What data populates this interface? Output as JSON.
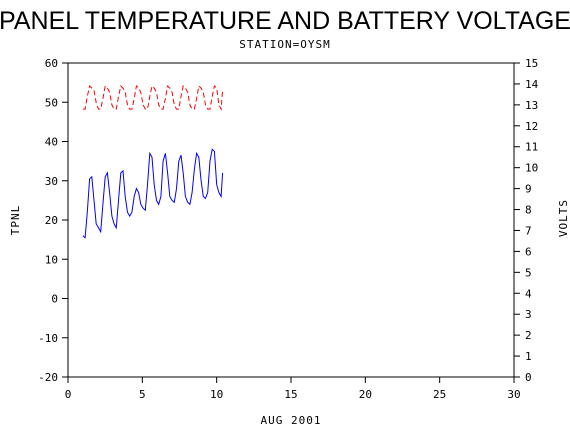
{
  "chart_data": {
    "type": "line",
    "title": "PANEL TEMPERATURE AND BATTERY VOLTAGE",
    "subtitle": "STATION=OYSM",
    "xlabel": "AUG 2001",
    "ylabel": "TPNL",
    "y2label": "VOLTS",
    "xlim": [
      0,
      30
    ],
    "ylim": [
      -20,
      60
    ],
    "y2lim": [
      0,
      15
    ],
    "xticks": [
      0,
      5,
      10,
      15,
      20,
      25,
      30
    ],
    "yticks": [
      -20,
      -10,
      0,
      10,
      20,
      30,
      40,
      50,
      60
    ],
    "y2ticks": [
      0,
      1,
      2,
      3,
      4,
      5,
      6,
      7,
      8,
      9,
      10,
      11,
      12,
      13,
      14,
      15
    ],
    "series": [
      {
        "axis": "left",
        "color": "#0000ff",
        "style": "solid",
        "x": [
          1.0,
          1.15,
          1.3,
          1.45,
          1.6,
          1.75,
          1.9,
          2.05,
          2.2,
          2.35,
          2.5,
          2.65,
          2.8,
          2.95,
          3.1,
          3.25,
          3.4,
          3.55,
          3.7,
          3.85,
          4.0,
          4.15,
          4.3,
          4.45,
          4.6,
          4.75,
          4.9,
          5.05,
          5.2,
          5.35,
          5.5,
          5.65,
          5.8,
          5.95,
          6.1,
          6.25,
          6.4,
          6.55,
          6.7,
          6.85,
          7.0,
          7.15,
          7.3,
          7.45,
          7.6,
          7.75,
          7.9,
          8.05,
          8.2,
          8.35,
          8.5,
          8.65,
          8.8,
          8.95,
          9.1,
          9.25,
          9.4,
          9.55,
          9.7,
          9.85,
          10.0,
          10.15,
          10.3,
          10.4
        ],
        "y": [
          16,
          15.5,
          22,
          30.5,
          31,
          25,
          19,
          18,
          17,
          24,
          31,
          32,
          27,
          21,
          19,
          18,
          25,
          32,
          32.5,
          26,
          22,
          21,
          22,
          26,
          28,
          27,
          24,
          23,
          22.5,
          29,
          37,
          36,
          29,
          25,
          24,
          26,
          35,
          37,
          32,
          26,
          25,
          24.5,
          28,
          35,
          36.5,
          32,
          26,
          24.5,
          24,
          27,
          33,
          37,
          36,
          30,
          26,
          25.5,
          27,
          35,
          38,
          37.5,
          29,
          27,
          26,
          32
        ]
      },
      {
        "axis": "right",
        "color": "#ff0000",
        "style": "dashed",
        "x": [
          1.0,
          1.15,
          1.3,
          1.45,
          1.6,
          1.75,
          1.9,
          2.05,
          2.2,
          2.35,
          2.5,
          2.65,
          2.8,
          2.95,
          3.1,
          3.25,
          3.4,
          3.55,
          3.7,
          3.85,
          4.0,
          4.15,
          4.3,
          4.45,
          4.6,
          4.75,
          4.9,
          5.05,
          5.2,
          5.35,
          5.5,
          5.65,
          5.8,
          5.95,
          6.1,
          6.25,
          6.4,
          6.55,
          6.7,
          6.85,
          7.0,
          7.15,
          7.3,
          7.45,
          7.6,
          7.75,
          7.9,
          8.05,
          8.2,
          8.35,
          8.5,
          8.65,
          8.8,
          8.95,
          9.1,
          9.25,
          9.4,
          9.55,
          9.7,
          9.85,
          10.0,
          10.15,
          10.3,
          10.4
        ],
        "y": [
          12.8,
          12.8,
          13.4,
          13.9,
          13.8,
          13.7,
          13.1,
          12.8,
          12.8,
          13.3,
          13.9,
          13.8,
          13.6,
          13.0,
          12.8,
          12.8,
          13.4,
          13.9,
          13.8,
          13.6,
          13.0,
          12.8,
          12.8,
          13.3,
          13.9,
          13.8,
          13.6,
          13.0,
          12.8,
          12.8,
          13.4,
          13.9,
          13.8,
          13.6,
          13.0,
          12.8,
          12.8,
          13.3,
          13.9,
          13.8,
          13.6,
          13.0,
          12.8,
          12.8,
          13.4,
          13.9,
          13.8,
          13.6,
          13.0,
          12.8,
          12.8,
          13.3,
          13.9,
          13.8,
          13.6,
          13.0,
          12.8,
          12.8,
          13.4,
          13.9,
          13.8,
          13.0,
          12.8,
          13.7
        ]
      }
    ]
  }
}
